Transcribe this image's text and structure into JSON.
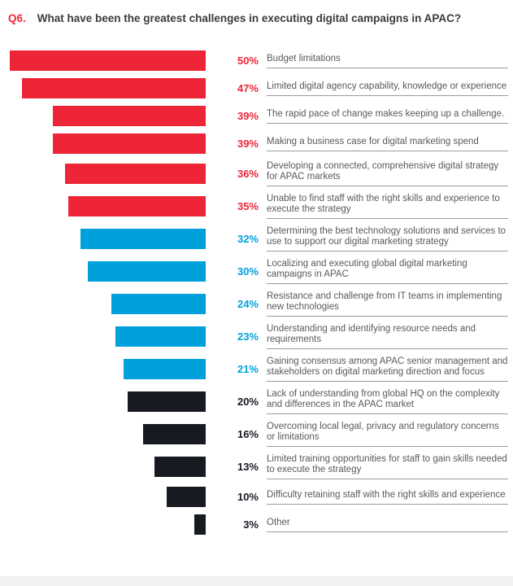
{
  "title": {
    "prefix": "Q6.",
    "text": "What have been the greatest challenges in executing digital campaigns in APAC?"
  },
  "chart_data": {
    "type": "bar",
    "orientation": "horizontal",
    "title": "Q6. What have been the greatest challenges in executing digital campaigns in APAC?",
    "xlabel": "",
    "ylabel": "",
    "unit": "%",
    "xlim": [
      0,
      52.5
    ],
    "grid": false,
    "legend": "none",
    "value_label_position": "right-of-bar",
    "bar_alignment": "right-edge-aligned",
    "colors": {
      "red": "#ee2537",
      "blue": "#00a0dc",
      "black": "#171b21"
    },
    "categories": [
      "Budget limitations",
      "Limited digital agency capability, knowledge or experience",
      "The rapid pace of change makes keeping up a challenge.",
      "Making a business case for digital marketing spend",
      "Developing a connected, comprehensive digital strategy for APAC markets",
      "Unable to find staff with the right skills and experience to execute the strategy",
      "Determining the best technology solutions and services to use to support our digital marketing strategy",
      "Localizing and executing global digital marketing campaigns in APAC",
      "Resistance and challenge from IT teams in implementing new technologies",
      "Understanding and identifying resource needs and requirements",
      "Gaining consensus among APAC senior management and stakeholders on digital marketing direction and focus",
      "Lack of understanding from global HQ on the complexity and differences in the APAC market",
      "Overcoming local legal, privacy and regulatory concerns or limitations",
      "Limited training opportunities for staff to gain skills needed to execute the strategy",
      "Difficulty retaining staff with the right skills and experience",
      "Other"
    ],
    "values": [
      50,
      47,
      39,
      39,
      36,
      35,
      32,
      30,
      24,
      23,
      21,
      20,
      16,
      13,
      10,
      3
    ],
    "items": [
      {
        "label": "Budget limitations",
        "value": 50,
        "display": "50%",
        "color": "red"
      },
      {
        "label": "Limited digital agency capability, knowledge or experience",
        "value": 47,
        "display": "47%",
        "color": "red"
      },
      {
        "label": "The rapid pace of change makes keeping up a challenge.",
        "value": 39,
        "display": "39%",
        "color": "red"
      },
      {
        "label": "Making a business case for digital marketing spend",
        "value": 39,
        "display": "39%",
        "color": "red"
      },
      {
        "label": "Developing a connected, comprehensive digital strategy for APAC markets",
        "value": 36,
        "display": "36%",
        "color": "red"
      },
      {
        "label": "Unable to find staff with the right skills and experience to execute the strategy",
        "value": 35,
        "display": "35%",
        "color": "red"
      },
      {
        "label": "Determining the best technology solutions and services to use to support our digital marketing strategy",
        "value": 32,
        "display": "32%",
        "color": "blue"
      },
      {
        "label": "Localizing and executing global digital marketing campaigns in APAC",
        "value": 30,
        "display": "30%",
        "color": "blue"
      },
      {
        "label": "Resistance and challenge from IT teams in implementing new technologies",
        "value": 24,
        "display": "24%",
        "color": "blue"
      },
      {
        "label": "Understanding and identifying resource needs and requirements",
        "value": 23,
        "display": "23%",
        "color": "blue"
      },
      {
        "label": "Gaining consensus among APAC senior management and stakeholders on digital marketing direction and focus",
        "value": 21,
        "display": "21%",
        "color": "blue"
      },
      {
        "label": "Lack of understanding from global HQ on the complexity and differences in the APAC market",
        "value": 20,
        "display": "20%",
        "color": "black"
      },
      {
        "label": "Overcoming local legal, privacy and regulatory concerns or limitations",
        "value": 16,
        "display": "16%",
        "color": "black"
      },
      {
        "label": "Limited training opportunities for staff to gain skills needed to execute the strategy",
        "value": 13,
        "display": "13%",
        "color": "black"
      },
      {
        "label": "Difficulty retaining staff with the right skills and experience",
        "value": 10,
        "display": "10%",
        "color": "black"
      },
      {
        "label": "Other",
        "value": 3,
        "display": "3%",
        "color": "black"
      }
    ]
  }
}
